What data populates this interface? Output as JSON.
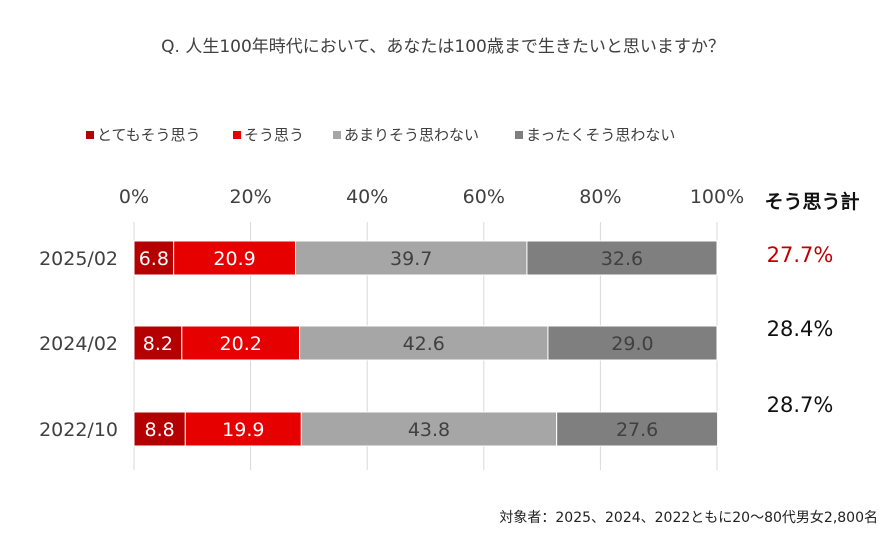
{
  "chart_data": {
    "type": "bar",
    "orientation": "horizontal",
    "stacked": true,
    "title": "Q. 人生100年時代において、あなたは100歳まで生きたいと思いますか？",
    "categories": [
      "2025/02",
      "2024/02",
      "2022/10"
    ],
    "series": [
      {
        "name": "とてもそう思う",
        "color": "#B40000",
        "label_color": "#FFFFFF",
        "values": [
          6.8,
          8.2,
          8.8
        ],
        "value_labels": [
          "6.8",
          "8.2",
          "8.8"
        ]
      },
      {
        "name": "そう思う",
        "color": "#E60000",
        "label_color": "#FFFFFF",
        "values": [
          20.9,
          20.2,
          19.9
        ],
        "value_labels": [
          "20.9",
          "20.2",
          "19.9"
        ]
      },
      {
        "name": "あまりそう思わない",
        "color": "#A6A6A6",
        "label_color": "#404040",
        "values": [
          39.7,
          42.6,
          43.8
        ],
        "value_labels": [
          "39.7",
          "42.6",
          "43.8"
        ]
      },
      {
        "name": "まったくそう思わない",
        "color": "#7F7F7F",
        "label_color": "#404040",
        "values": [
          32.6,
          29.0,
          27.6
        ],
        "value_labels": [
          "32.6",
          "29.0",
          "27.6"
        ]
      }
    ],
    "xlim": [
      0,
      100
    ],
    "x_ticks": [
      "0%",
      "20%",
      "40%",
      "60%",
      "80%",
      "100%"
    ],
    "grid": true,
    "legend_position": "top",
    "summary": {
      "header": "そう思う計",
      "values": [
        "27.7%",
        "28.4%",
        "28.7%"
      ],
      "colors": [
        "#C00000",
        "#111111",
        "#111111"
      ]
    },
    "note": "対象者：2025、2024、2022ともに20～80代男女2,800名"
  }
}
